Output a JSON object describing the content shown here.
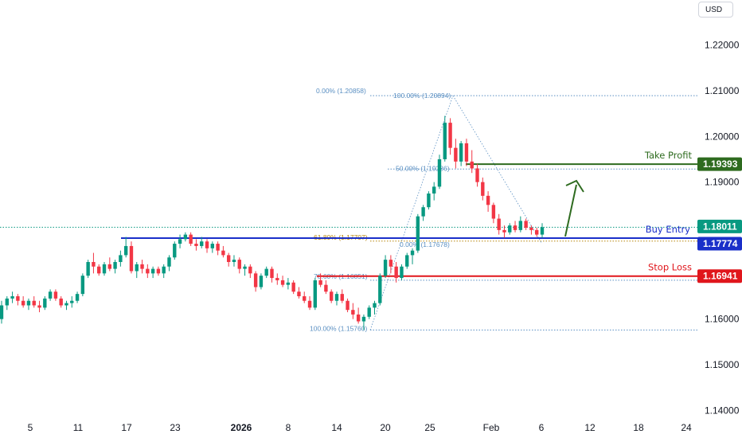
{
  "currency": "USD",
  "colors": {
    "up": "#089981",
    "down": "#f23645",
    "entry": "#1a2fc9",
    "stop": "#e0161c",
    "tp": "#2e6b1f",
    "fib": "#5a8fc2",
    "fib_gold": "#b8860b",
    "badge_blue": "#1a2fc9",
    "badge_red": "#e0161c",
    "badge_green": "#2e6b1f"
  },
  "price_axis": {
    "ticks": [
      "1.22000",
      "1.21000",
      "1.20000",
      "1.19000",
      "1.16000",
      "1.15000",
      "1.14000"
    ]
  },
  "date_axis": {
    "ticks": [
      "5",
      "11",
      "17",
      "23",
      "2026",
      "8",
      "14",
      "20",
      "25",
      "Feb",
      "6",
      "12",
      "18",
      "24"
    ]
  },
  "levels": {
    "take_profit": {
      "label": "Take Profit",
      "value": "1.19393"
    },
    "buy_entry": {
      "label": "Buy Entry",
      "value": "1.17774"
    },
    "stop_loss": {
      "label": "Stop Loss",
      "value": "1.16941"
    },
    "current_price": {
      "value": "1.18011"
    }
  },
  "fib_labels": {
    "top_left": "0.00% (1.20858)",
    "top_right": "100.00% (1.20894)",
    "mid": "50.00% (1.19286)",
    "r618": "61.80% (1.17707)",
    "zero_right": "0.00% (1.17678)",
    "r786": "78.60% (1.16851)",
    "bottom": "100.00% (1.15760)"
  },
  "chart_data": {
    "type": "candlestick",
    "y_axis": {
      "min": 1.138,
      "max": 1.228
    },
    "annotations": [
      "Take Profit 1.19393",
      "Buy Entry 1.17774",
      "Stop Loss 1.16941",
      "Current 1.18011"
    ],
    "candles": [
      [
        1.16,
        1.164,
        1.159,
        1.163
      ],
      [
        1.163,
        1.165,
        1.162,
        1.1645
      ],
      [
        1.1645,
        1.166,
        1.1635,
        1.165
      ],
      [
        1.165,
        1.1655,
        1.163,
        1.164
      ],
      [
        1.164,
        1.165,
        1.1625,
        1.163
      ],
      [
        1.163,
        1.1645,
        1.162,
        1.164
      ],
      [
        1.164,
        1.165,
        1.1625,
        1.163
      ],
      [
        1.163,
        1.164,
        1.1615,
        1.1625
      ],
      [
        1.1625,
        1.165,
        1.162,
        1.1645
      ],
      [
        1.1645,
        1.1665,
        1.164,
        1.166
      ],
      [
        1.166,
        1.1665,
        1.164,
        1.1645
      ],
      [
        1.1645,
        1.165,
        1.1625,
        1.163
      ],
      [
        1.163,
        1.164,
        1.162,
        1.1635
      ],
      [
        1.1635,
        1.165,
        1.1625,
        1.164
      ],
      [
        1.164,
        1.166,
        1.1635,
        1.1655
      ],
      [
        1.1655,
        1.17,
        1.165,
        1.1695
      ],
      [
        1.1695,
        1.173,
        1.169,
        1.1725
      ],
      [
        1.1725,
        1.1745,
        1.17,
        1.1715
      ],
      [
        1.1715,
        1.172,
        1.1695,
        1.17
      ],
      [
        1.17,
        1.1725,
        1.1695,
        1.172
      ],
      [
        1.172,
        1.1735,
        1.1705,
        1.171
      ],
      [
        1.171,
        1.173,
        1.17,
        1.1725
      ],
      [
        1.1725,
        1.175,
        1.1715,
        1.174
      ],
      [
        1.174,
        1.178,
        1.1735,
        1.176
      ],
      [
        1.176,
        1.177,
        1.17,
        1.1705
      ],
      [
        1.1705,
        1.1725,
        1.169,
        1.172
      ],
      [
        1.172,
        1.173,
        1.17,
        1.171
      ],
      [
        1.171,
        1.172,
        1.169,
        1.17
      ],
      [
        1.17,
        1.1715,
        1.169,
        1.171
      ],
      [
        1.171,
        1.1715,
        1.1695,
        1.17
      ],
      [
        1.17,
        1.172,
        1.169,
        1.1715
      ],
      [
        1.1715,
        1.174,
        1.1705,
        1.1735
      ],
      [
        1.1735,
        1.177,
        1.173,
        1.1765
      ],
      [
        1.1765,
        1.1785,
        1.1755,
        1.1775
      ],
      [
        1.1775,
        1.179,
        1.177,
        1.1785
      ],
      [
        1.1785,
        1.179,
        1.176,
        1.1765
      ],
      [
        1.1765,
        1.1775,
        1.175,
        1.176
      ],
      [
        1.176,
        1.178,
        1.1755,
        1.177
      ],
      [
        1.177,
        1.1775,
        1.1745,
        1.1755
      ],
      [
        1.1755,
        1.177,
        1.1745,
        1.1765
      ],
      [
        1.1765,
        1.177,
        1.174,
        1.175
      ],
      [
        1.175,
        1.176,
        1.1735,
        1.174
      ],
      [
        1.174,
        1.1745,
        1.1715,
        1.1725
      ],
      [
        1.1725,
        1.174,
        1.1715,
        1.173
      ],
      [
        1.173,
        1.1735,
        1.17,
        1.171
      ],
      [
        1.171,
        1.172,
        1.1695,
        1.1715
      ],
      [
        1.1715,
        1.172,
        1.169,
        1.17
      ],
      [
        1.17,
        1.1705,
        1.166,
        1.167
      ],
      [
        1.167,
        1.17,
        1.1665,
        1.1695
      ],
      [
        1.1695,
        1.1715,
        1.169,
        1.171
      ],
      [
        1.171,
        1.1715,
        1.168,
        1.169
      ],
      [
        1.169,
        1.17,
        1.1675,
        1.1685
      ],
      [
        1.1685,
        1.1695,
        1.167,
        1.1675
      ],
      [
        1.1675,
        1.169,
        1.1665,
        1.168
      ],
      [
        1.168,
        1.1685,
        1.1655,
        1.166
      ],
      [
        1.166,
        1.167,
        1.1645,
        1.165
      ],
      [
        1.165,
        1.166,
        1.1635,
        1.164
      ],
      [
        1.164,
        1.165,
        1.162,
        1.1625
      ],
      [
        1.1625,
        1.169,
        1.162,
        1.1685
      ],
      [
        1.1685,
        1.17,
        1.167,
        1.1675
      ],
      [
        1.1675,
        1.1685,
        1.1655,
        1.166
      ],
      [
        1.166,
        1.1665,
        1.1635,
        1.164
      ],
      [
        1.164,
        1.166,
        1.163,
        1.1655
      ],
      [
        1.1655,
        1.1665,
        1.1635,
        1.164
      ],
      [
        1.164,
        1.1645,
        1.1615,
        1.162
      ],
      [
        1.162,
        1.1635,
        1.16,
        1.161
      ],
      [
        1.161,
        1.1625,
        1.159,
        1.1595
      ],
      [
        1.1595,
        1.161,
        1.1576,
        1.1605
      ],
      [
        1.1605,
        1.163,
        1.16,
        1.1625
      ],
      [
        1.1625,
        1.164,
        1.161,
        1.1635
      ],
      [
        1.1635,
        1.17,
        1.163,
        1.1695
      ],
      [
        1.1695,
        1.174,
        1.169,
        1.173
      ],
      [
        1.173,
        1.174,
        1.17,
        1.1715
      ],
      [
        1.1715,
        1.1725,
        1.168,
        1.169
      ],
      [
        1.169,
        1.172,
        1.1685,
        1.1715
      ],
      [
        1.1715,
        1.1745,
        1.171,
        1.174
      ],
      [
        1.174,
        1.1755,
        1.172,
        1.175
      ],
      [
        1.175,
        1.183,
        1.1745,
        1.1825
      ],
      [
        1.1825,
        1.185,
        1.1815,
        1.1845
      ],
      [
        1.1845,
        1.188,
        1.184,
        1.1875
      ],
      [
        1.1875,
        1.19,
        1.186,
        1.189
      ],
      [
        1.189,
        1.196,
        1.1885,
        1.195
      ],
      [
        1.195,
        1.2045,
        1.1945,
        1.203
      ],
      [
        1.203,
        1.204,
        1.196,
        1.1975
      ],
      [
        1.1975,
        1.1995,
        1.193,
        1.1945
      ],
      [
        1.1945,
        1.199,
        1.1935,
        1.1985
      ],
      [
        1.1985,
        1.1995,
        1.1935,
        1.1945
      ],
      [
        1.1945,
        1.197,
        1.192,
        1.193
      ],
      [
        1.193,
        1.194,
        1.189,
        1.19
      ],
      [
        1.19,
        1.191,
        1.186,
        1.187
      ],
      [
        1.187,
        1.188,
        1.1835,
        1.185
      ],
      [
        1.185,
        1.1855,
        1.181,
        1.182
      ],
      [
        1.182,
        1.183,
        1.1785,
        1.1795
      ],
      [
        1.1795,
        1.1805,
        1.1778,
        1.179
      ],
      [
        1.179,
        1.181,
        1.1785,
        1.1805
      ],
      [
        1.1805,
        1.1815,
        1.179,
        1.1795
      ],
      [
        1.1795,
        1.1825,
        1.179,
        1.1815
      ],
      [
        1.1815,
        1.182,
        1.1795,
        1.18
      ],
      [
        1.18,
        1.1805,
        1.1785,
        1.1795
      ],
      [
        1.1795,
        1.18,
        1.178,
        1.1785
      ],
      [
        1.1785,
        1.181,
        1.1778,
        1.1801
      ]
    ]
  }
}
